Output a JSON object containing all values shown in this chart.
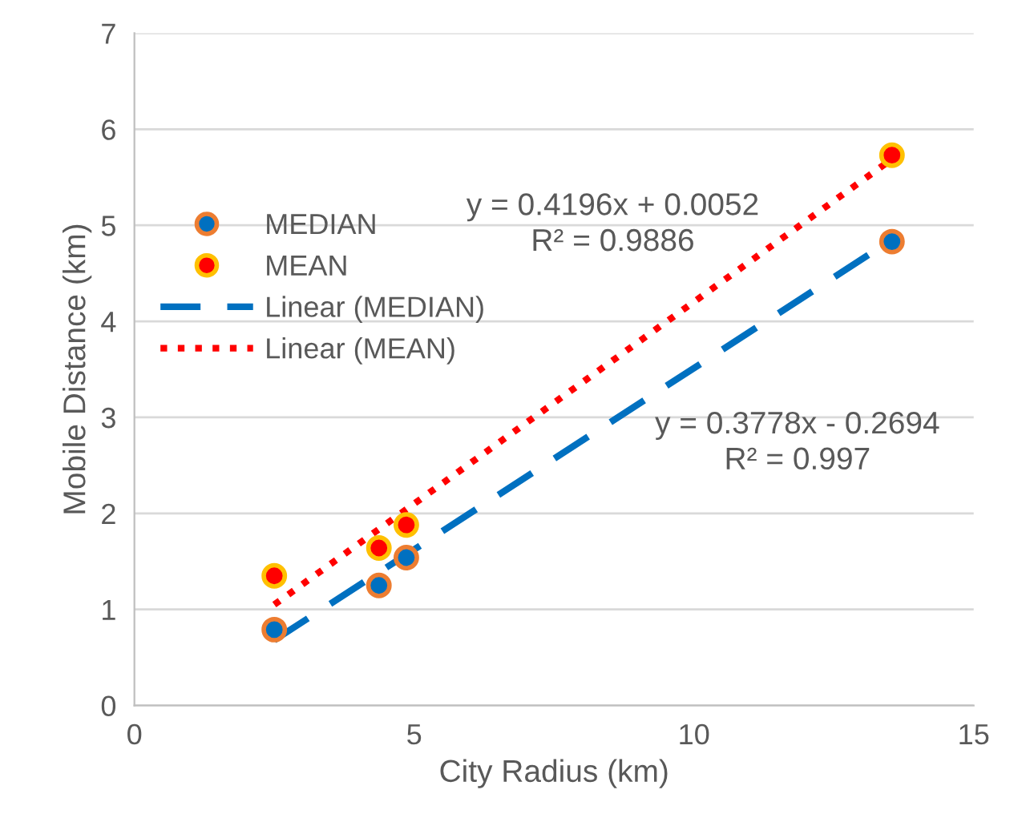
{
  "chart_data": {
    "type": "scatter",
    "xlabel": "City Radius (km)",
    "ylabel": "Mobile Distance (km)",
    "xlim": [
      0,
      15
    ],
    "xticks": [
      0,
      5,
      10,
      15
    ],
    "ylim": [
      0,
      7
    ],
    "yticks": [
      0,
      1,
      2,
      3,
      4,
      5,
      6,
      7
    ],
    "grid": "y",
    "legend": "left",
    "marker": "circle",
    "series": [
      {
        "name": "MEDIAN",
        "color": "#0070c0",
        "x": [
          2.5,
          4.37,
          4.86,
          13.54
        ],
        "values": [
          0.79,
          1.25,
          1.54,
          4.83
        ]
      },
      {
        "name": "MEAN",
        "color": "#ff0000",
        "x": [
          2.5,
          4.37,
          4.86,
          13.54
        ],
        "values": [
          1.35,
          1.64,
          1.88,
          5.73
        ]
      },
      {
        "name": "Linear (MEDIAN)",
        "type": "line",
        "line_style": "dashed",
        "marker": "none",
        "color": "#0070c0",
        "x": [
          2.5,
          13.54
        ],
        "values": [
          0.68,
          4.85
        ]
      },
      {
        "name": "Linear (MEAN)",
        "type": "line",
        "line_style": "dotted",
        "marker": "none",
        "color": "#ff0000",
        "x": [
          2.5,
          13.54
        ],
        "values": [
          1.05,
          5.69
        ]
      }
    ],
    "annotations": [
      "y = 0.4196x + 0.0052\nR² = 0.9886",
      "y = 0.3778x - 0.2694\nR² = 0.997"
    ]
  }
}
